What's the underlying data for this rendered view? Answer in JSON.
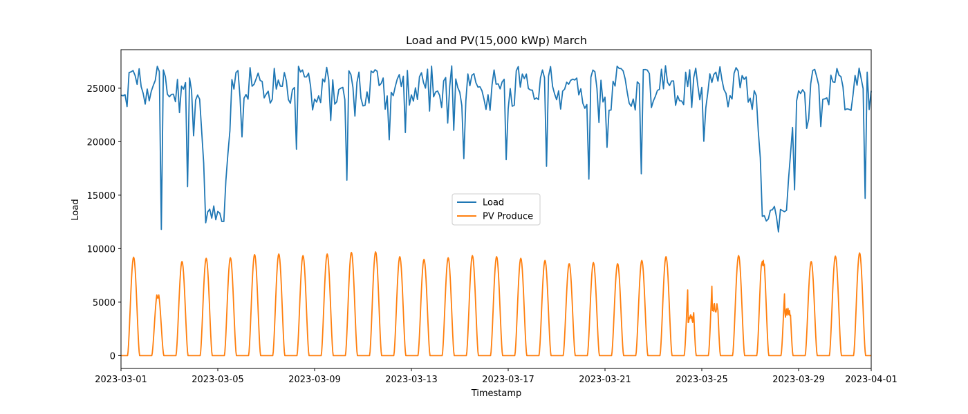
{
  "chart_data": {
    "type": "line",
    "title": "Load and PV(15,000 kWp) March",
    "xlabel": "Timestamp",
    "ylabel": "Load",
    "xlim": [
      "2023-03-01",
      "2023-04-01"
    ],
    "ylim": [
      -1200,
      28600
    ],
    "x_ticks": [
      "2023-03-01",
      "2023-03-05",
      "2023-03-09",
      "2023-03-13",
      "2023-03-17",
      "2023-03-21",
      "2023-03-25",
      "2023-03-29",
      "2023-04-01"
    ],
    "y_ticks": [
      0,
      5000,
      10000,
      15000,
      20000,
      25000
    ],
    "grid": false,
    "legend_position": "center",
    "series": [
      {
        "name": "Load",
        "color": "#1f77b4",
        "weekday_day_peak": 26000,
        "weekday_night_base": 24000,
        "weekend_base": 13200,
        "weekend_periods": [
          {
            "start": "2023-03-04T12:00",
            "end": "2023-03-05T06:00",
            "min": 11800
          },
          {
            "start": "2023-03-27T12:00",
            "end": "2023-03-28T12:00",
            "min": 11500
          }
        ],
        "dips": [
          {
            "time": "2023-03-02T16:00",
            "value": 11800
          },
          {
            "time": "2023-03-03T18:00",
            "value": 15800
          },
          {
            "time": "2023-03-08T06:00",
            "value": 19300
          },
          {
            "time": "2023-03-10T08:00",
            "value": 16400
          },
          {
            "time": "2023-03-18T14:00",
            "value": 17700
          },
          {
            "time": "2023-03-20T08:00",
            "value": 16500
          },
          {
            "time": "2023-03-22T12:00",
            "value": 17000
          },
          {
            "time": "2023-03-27T10:00",
            "value": 18500
          },
          {
            "time": "2023-03-28T20:00",
            "value": 15500
          },
          {
            "time": "2023-03-31T18:00",
            "value": 14700
          }
        ]
      },
      {
        "name": "PV Produce",
        "color": "#ff7f0e",
        "sunrise_hour": 6.5,
        "sunset_hour": 18.5,
        "daily_peaks": [
          9200,
          6000,
          8800,
          9100,
          9150,
          9450,
          9500,
          9350,
          9500,
          9650,
          9700,
          9250,
          9000,
          9150,
          9350,
          9250,
          9100,
          8900,
          8600,
          8700,
          8600,
          8900,
          9250,
          8900,
          9400,
          9350,
          9750,
          8350,
          8800,
          9300,
          9600
        ],
        "cloudy_days": [
          {
            "date": "2023-03-02",
            "level": 5800
          },
          {
            "date": "2023-03-24",
            "level": 3500
          },
          {
            "date": "2023-03-25",
            "level": 4500
          },
          {
            "date": "2023-03-27",
            "level": 8500
          },
          {
            "date": "2023-03-28",
            "level": 4000
          }
        ]
      }
    ]
  }
}
